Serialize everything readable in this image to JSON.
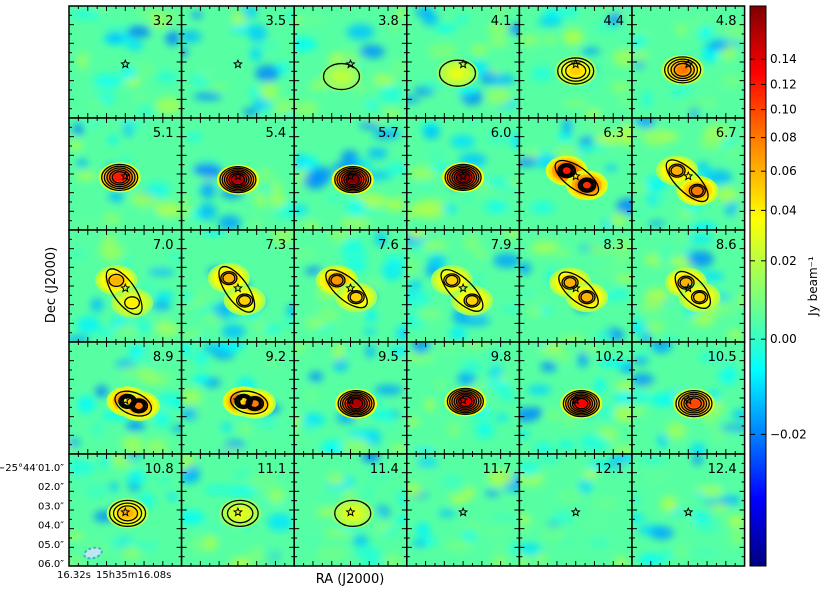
{
  "chart_data": {
    "type": "heatmap",
    "xlabel": "RA (J2000)",
    "ylabel": "Dec (J2000)",
    "colorbar": {
      "label": "Jy beam⁻¹",
      "ticks": [
        "−0.02",
        "0.00",
        "0.02",
        "0.04",
        "0.06",
        "0.08",
        "0.10",
        "0.12",
        "0.14"
      ],
      "tick_values": [
        -0.02,
        0.0,
        0.02,
        0.04,
        0.06,
        0.08,
        0.1,
        0.12,
        0.14
      ],
      "range": [
        -0.03,
        0.148
      ],
      "colormap": "jet",
      "scale": "non-linear (asinh-like stretch)"
    },
    "y_tick_labels": [
      "−25°44′01.0″",
      "02.0″",
      "03.0″",
      "04.0″",
      "05.0″",
      "06.0″"
    ],
    "x_tick_labels": [
      "16.32s",
      "15h35m16.08s"
    ],
    "grid_layout": {
      "rows": 5,
      "cols": 6
    },
    "channel_labels": [
      "3.2",
      "3.5",
      "3.8",
      "4.1",
      "4.4",
      "4.8",
      "5.1",
      "5.4",
      "5.7",
      "6.0",
      "6.3",
      "6.7",
      "7.0",
      "7.3",
      "7.6",
      "7.9",
      "8.3",
      "8.6",
      "8.9",
      "9.2",
      "9.5",
      "9.8",
      "10.2",
      "10.5",
      "10.8",
      "11.1",
      "11.4",
      "11.7",
      "12.1",
      "12.4"
    ],
    "channels": [
      {
        "v": "3.2",
        "sources": [],
        "contours": 0
      },
      {
        "v": "3.5",
        "sources": [],
        "contours": 0
      },
      {
        "v": "3.8",
        "sources": [
          {
            "peak": 0.02,
            "dx": -0.08,
            "dy": -0.08
          }
        ],
        "contours": 1
      },
      {
        "v": "4.1",
        "sources": [
          {
            "peak": 0.03,
            "dx": -0.05,
            "dy": -0.05
          }
        ],
        "contours": 1
      },
      {
        "v": "4.4",
        "sources": [
          {
            "peak": 0.05,
            "dx": 0.0,
            "dy": -0.03
          }
        ],
        "contours": 3
      },
      {
        "v": "4.8",
        "sources": [
          {
            "peak": 0.08,
            "dx": -0.05,
            "dy": -0.02
          }
        ],
        "contours": 4
      },
      {
        "v": "5.1",
        "sources": [
          {
            "peak": 0.12,
            "dx": -0.05,
            "dy": 0.02
          }
        ],
        "contours": 5
      },
      {
        "v": "5.4",
        "sources": [
          {
            "peak": 0.15,
            "dx": 0.0,
            "dy": 0.0
          }
        ],
        "contours": 6
      },
      {
        "v": "5.7",
        "sources": [
          {
            "peak": 0.16,
            "dx": 0.02,
            "dy": 0.0
          }
        ],
        "contours": 6
      },
      {
        "v": "6.0",
        "sources": [
          {
            "peak": 0.16,
            "dx": 0.0,
            "dy": 0.02
          }
        ],
        "contours": 6
      },
      {
        "v": "6.3",
        "sources": [
          {
            "peak": 0.12,
            "dx": -0.08,
            "dy": 0.08
          },
          {
            "peak": 0.11,
            "dx": 0.1,
            "dy": -0.05
          }
        ],
        "contours": 5
      },
      {
        "v": "6.7",
        "sources": [
          {
            "peak": 0.06,
            "dx": -0.1,
            "dy": 0.08
          },
          {
            "peak": 0.08,
            "dx": 0.08,
            "dy": -0.1
          }
        ],
        "contours": 3
      },
      {
        "v": "7.0",
        "sources": [
          {
            "peak": 0.06,
            "dx": -0.08,
            "dy": 0.1
          },
          {
            "peak": 0.04,
            "dx": 0.06,
            "dy": -0.1
          }
        ],
        "contours": 2
      },
      {
        "v": "7.3",
        "sources": [
          {
            "peak": 0.06,
            "dx": -0.08,
            "dy": 0.12
          },
          {
            "peak": 0.05,
            "dx": 0.06,
            "dy": -0.08
          }
        ],
        "contours": 3
      },
      {
        "v": "7.6",
        "sources": [
          {
            "peak": 0.07,
            "dx": -0.12,
            "dy": 0.1
          },
          {
            "peak": 0.05,
            "dx": 0.05,
            "dy": -0.05
          }
        ],
        "contours": 3
      },
      {
        "v": "7.9",
        "sources": [
          {
            "peak": 0.05,
            "dx": -0.1,
            "dy": 0.1
          },
          {
            "peak": 0.05,
            "dx": 0.08,
            "dy": -0.08
          }
        ],
        "contours": 3
      },
      {
        "v": "8.3",
        "sources": [
          {
            "peak": 0.06,
            "dx": -0.05,
            "dy": 0.08
          },
          {
            "peak": 0.06,
            "dx": 0.1,
            "dy": -0.05
          }
        ],
        "contours": 3
      },
      {
        "v": "8.6",
        "sources": [
          {
            "peak": 0.06,
            "dx": -0.02,
            "dy": 0.08
          },
          {
            "peak": 0.05,
            "dx": 0.1,
            "dy": -0.05
          }
        ],
        "contours": 3
      },
      {
        "v": "8.9",
        "sources": [
          {
            "peak": 0.1,
            "dx": 0.02,
            "dy": 0.02
          },
          {
            "peak": 0.08,
            "dx": 0.12,
            "dy": -0.02
          }
        ],
        "contours": 5
      },
      {
        "v": "9.2",
        "sources": [
          {
            "peak": 0.12,
            "dx": 0.05,
            "dy": 0.02
          },
          {
            "peak": 0.08,
            "dx": 0.15,
            "dy": 0.0
          }
        ],
        "contours": 5
      },
      {
        "v": "9.5",
        "sources": [
          {
            "peak": 0.15,
            "dx": 0.05,
            "dy": 0.0
          }
        ],
        "contours": 6
      },
      {
        "v": "9.8",
        "sources": [
          {
            "peak": 0.14,
            "dx": 0.02,
            "dy": 0.02
          }
        ],
        "contours": 6
      },
      {
        "v": "10.2",
        "sources": [
          {
            "peak": 0.13,
            "dx": 0.05,
            "dy": 0.0
          }
        ],
        "contours": 6
      },
      {
        "v": "10.5",
        "sources": [
          {
            "peak": 0.1,
            "dx": 0.05,
            "dy": 0.0
          }
        ],
        "contours": 5
      },
      {
        "v": "10.8",
        "sources": [
          {
            "peak": 0.06,
            "dx": 0.02,
            "dy": 0.02
          }
        ],
        "contours": 3
      },
      {
        "v": "11.1",
        "sources": [
          {
            "peak": 0.03,
            "dx": 0.02,
            "dy": 0.02
          }
        ],
        "contours": 2
      },
      {
        "v": "11.4",
        "sources": [
          {
            "peak": 0.03,
            "dx": 0.02,
            "dy": 0.02
          }
        ],
        "contours": 1
      },
      {
        "v": "11.7",
        "sources": [],
        "contours": 0
      },
      {
        "v": "12.1",
        "sources": [],
        "contours": 0
      },
      {
        "v": "12.4",
        "sources": [],
        "contours": 0
      }
    ],
    "markers": {
      "star": "protostar position",
      "beam": "dashed ellipse"
    },
    "grid": false
  }
}
